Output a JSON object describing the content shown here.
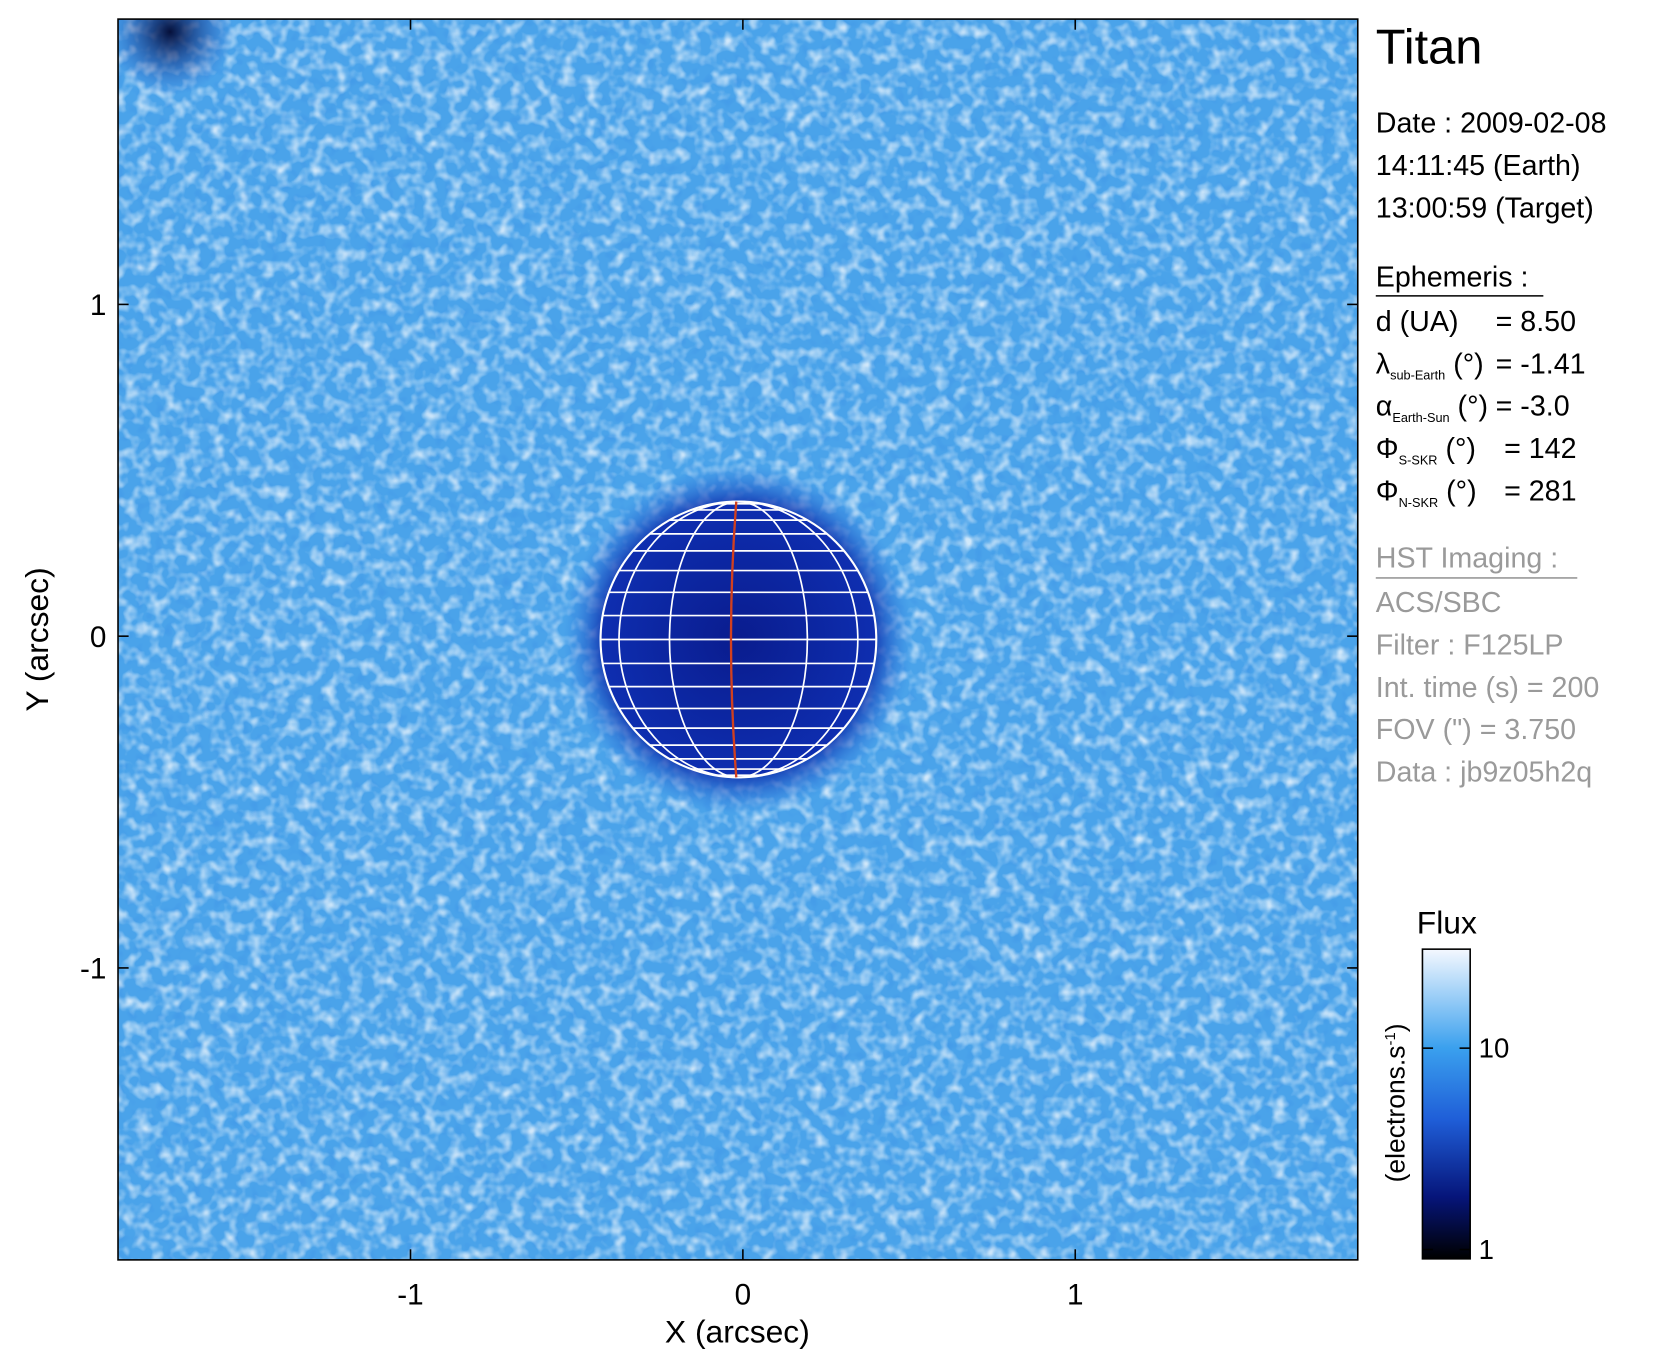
{
  "chart_data": {
    "type": "image",
    "xlabel": "X (arcsec)",
    "ylabel": "Y (arcsec)",
    "xlim": [
      -1.88,
      1.85
    ],
    "ylim": [
      -1.88,
      1.86
    ],
    "xticks": [
      -1,
      0,
      1
    ],
    "yticks": [
      -1,
      0,
      1
    ],
    "colorbar": {
      "title": "Flux",
      "label": "(electrons.s",
      "label_sup": "-1",
      "label_end": ")",
      "scale": "log",
      "lim": [
        0.9,
        31
      ],
      "ticks": [
        1,
        10
      ]
    }
  },
  "panel": {
    "title": "Titan",
    "date": [
      "Date : 2009-02-08",
      "14:11:45 (Earth)",
      "13:00:59 (Target)"
    ],
    "ephemeris": {
      "heading": "Ephemeris :",
      "rows": [
        {
          "symbol": "d (UA)",
          "value": "= 8.50"
        },
        {
          "symbol": "λ",
          "sub": "sub-Earth",
          "unit": " (°)",
          "value": "= -1.41"
        },
        {
          "symbol": "α",
          "sub": "Earth-Sun",
          "unit": " (°)",
          "value": "= -3.0"
        },
        {
          "symbol": "Φ",
          "sub": "S-SKR",
          "unit": " (°)",
          "value": "= 142"
        },
        {
          "symbol": "Φ",
          "sub": "N-SKR",
          "unit": " (°)",
          "value": "= 281"
        }
      ]
    },
    "imaging": {
      "heading": "HST Imaging :",
      "lines": [
        "ACS/SBC",
        "Filter : F125LP",
        "Int. time (s) = 200",
        "FOV (\") = 3.750",
        "Data : jb9z05h2q"
      ]
    }
  }
}
